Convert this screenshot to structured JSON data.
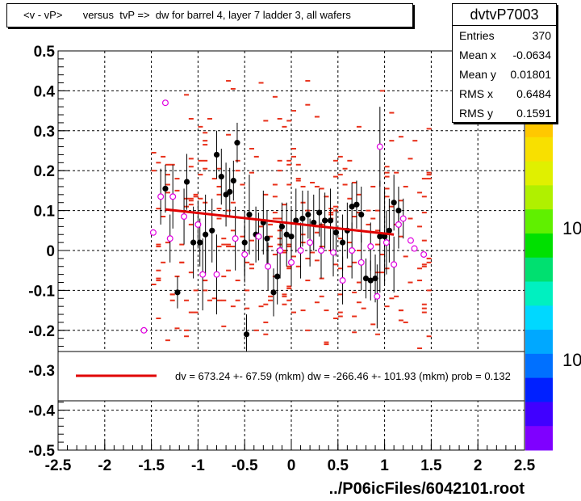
{
  "title": "<v - vP>       versus  tvP =>  dw for barrel 4, layer 7 ladder 3, all wafers",
  "stats": {
    "name": "dvtvP7003",
    "rows": [
      {
        "key": "Entries",
        "value": "370"
      },
      {
        "key": "Mean x",
        "value": "-0.0634"
      },
      {
        "key": "Mean y",
        "value": "0.01801"
      },
      {
        "key": "RMS x",
        "value": "0.6484"
      },
      {
        "key": "RMS y",
        "value": "0.1591"
      }
    ]
  },
  "footer": "../P06icFiles/6042101.root",
  "legend": {
    "fit_text": "dv =  673.24 +- 67.59 (mkm) dw = -266.46 +- 101.93 (mkm) prob = 0.132"
  },
  "colorbar": {
    "labels": [
      "10",
      "10"
    ]
  },
  "colors": {
    "hist": "#e8301a",
    "profile_black": "#000000",
    "profile_magenta": "#e000e0",
    "fit": "#e00000"
  },
  "chart_data": {
    "type": "scatter",
    "xlim": [
      -2.5,
      2.5
    ],
    "ylim": [
      -0.5,
      0.5
    ],
    "x_ticks": [
      "-2.5",
      "-2",
      "-1.5",
      "-1",
      "-0.5",
      "0",
      "0.5",
      "1",
      "1.5",
      "2",
      "2.5"
    ],
    "y_ticks": [
      "-0.5",
      "-0.4",
      "-0.3",
      "-0.2",
      "-0.1",
      "0",
      "0.1",
      "0.2",
      "0.3",
      "0.4",
      "0.5"
    ],
    "grid": true,
    "fit_line": {
      "x": [
        -1.35,
        1.1
      ],
      "y": [
        0.103,
        0.04
      ]
    },
    "profile_black": [
      {
        "x": -1.35,
        "y": 0.155,
        "e": 0.06
      },
      {
        "x": -1.22,
        "y": -0.105,
        "e": 0.04
      },
      {
        "x": -1.12,
        "y": 0.172,
        "e": 0.07
      },
      {
        "x": -1.05,
        "y": 0.02,
        "e": 0.09
      },
      {
        "x": -0.98,
        "y": 0.02,
        "e": 0.06
      },
      {
        "x": -0.92,
        "y": 0.04,
        "e": 0.1
      },
      {
        "x": -0.85,
        "y": 0.05,
        "e": 0.08
      },
      {
        "x": -0.8,
        "y": 0.24,
        "e": 0.06
      },
      {
        "x": -0.75,
        "y": 0.185,
        "e": 0.07
      },
      {
        "x": -0.7,
        "y": 0.14,
        "e": 0.08
      },
      {
        "x": -0.66,
        "y": 0.147,
        "e": 0.06
      },
      {
        "x": -0.62,
        "y": 0.175,
        "e": 0.05
      },
      {
        "x": -0.58,
        "y": 0.27,
        "e": 0.05
      },
      {
        "x": -0.5,
        "y": 0.02,
        "e": 0.08
      },
      {
        "x": -0.48,
        "y": -0.21,
        "e": 0.05
      },
      {
        "x": -0.45,
        "y": 0.09,
        "e": 0.1
      },
      {
        "x": -0.38,
        "y": 0.04,
        "e": 0.07
      },
      {
        "x": -0.3,
        "y": 0.07,
        "e": 0.08
      },
      {
        "x": -0.26,
        "y": 0.03,
        "e": 0.07
      },
      {
        "x": -0.19,
        "y": -0.105,
        "e": 0.06
      },
      {
        "x": -0.15,
        "y": -0.065,
        "e": 0.07
      },
      {
        "x": -0.1,
        "y": 0.06,
        "e": 0.06
      },
      {
        "x": -0.05,
        "y": 0.04,
        "e": 0.08
      },
      {
        "x": 0.0,
        "y": 0.035,
        "e": 0.07
      },
      {
        "x": 0.05,
        "y": 0.075,
        "e": 0.08
      },
      {
        "x": 0.12,
        "y": 0.08,
        "e": 0.07
      },
      {
        "x": 0.18,
        "y": 0.09,
        "e": 0.06
      },
      {
        "x": 0.24,
        "y": 0.07,
        "e": 0.07
      },
      {
        "x": 0.3,
        "y": 0.095,
        "e": 0.06
      },
      {
        "x": 0.36,
        "y": 0.075,
        "e": 0.07
      },
      {
        "x": 0.42,
        "y": 0.075,
        "e": 0.08
      },
      {
        "x": 0.48,
        "y": 0.045,
        "e": 0.06
      },
      {
        "x": 0.55,
        "y": 0.02,
        "e": 0.07
      },
      {
        "x": 0.6,
        "y": 0.05,
        "e": 0.07
      },
      {
        "x": 0.65,
        "y": 0.11,
        "e": 0.06
      },
      {
        "x": 0.7,
        "y": 0.115,
        "e": 0.06
      },
      {
        "x": 0.75,
        "y": 0.09,
        "e": 0.07
      },
      {
        "x": 0.8,
        "y": -0.07,
        "e": 0.05
      },
      {
        "x": 0.85,
        "y": -0.075,
        "e": 0.05
      },
      {
        "x": 0.9,
        "y": -0.07,
        "e": 0.06
      },
      {
        "x": 0.95,
        "y": 0.035,
        "e": 0.14
      },
      {
        "x": 1.0,
        "y": 0.035,
        "e": 0.12
      },
      {
        "x": 1.05,
        "y": 0.05,
        "e": 0.08
      },
      {
        "x": 1.1,
        "y": 0.12,
        "e": 0.07
      },
      {
        "x": 1.15,
        "y": 0.1,
        "e": 0.06
      }
    ],
    "profile_magenta": [
      {
        "x": -1.58,
        "y": -0.2,
        "e": 0.0
      },
      {
        "x": -1.48,
        "y": 0.045,
        "e": 0.0
      },
      {
        "x": -1.4,
        "y": 0.135,
        "e": 0.07
      },
      {
        "x": -1.35,
        "y": 0.37,
        "e": 0.0
      },
      {
        "x": -1.3,
        "y": 0.03,
        "e": 0.06
      },
      {
        "x": -1.27,
        "y": 0.135,
        "e": 0.08
      },
      {
        "x": -1.15,
        "y": 0.085,
        "e": 0.07
      },
      {
        "x": -1.0,
        "y": 0.065,
        "e": 0.06
      },
      {
        "x": -0.95,
        "y": -0.06,
        "e": 0.09
      },
      {
        "x": -0.8,
        "y": -0.06,
        "e": 0.1
      },
      {
        "x": -0.6,
        "y": 0.03,
        "e": 0.08
      },
      {
        "x": -0.5,
        "y": -0.01,
        "e": 0.07
      },
      {
        "x": -0.35,
        "y": 0.035,
        "e": 0.06
      },
      {
        "x": -0.25,
        "y": -0.04,
        "e": 0.06
      },
      {
        "x": -0.12,
        "y": 0.0,
        "e": 0.07
      },
      {
        "x": 0.0,
        "y": -0.03,
        "e": 0.06
      },
      {
        "x": 0.1,
        "y": 0.0,
        "e": 0.07
      },
      {
        "x": 0.2,
        "y": 0.02,
        "e": 0.06
      },
      {
        "x": 0.32,
        "y": 0.0,
        "e": 0.07
      },
      {
        "x": 0.45,
        "y": -0.005,
        "e": 0.06
      },
      {
        "x": 0.55,
        "y": -0.075,
        "e": 0.06
      },
      {
        "x": 0.65,
        "y": 0.0,
        "e": 0.07
      },
      {
        "x": 0.75,
        "y": -0.03,
        "e": 0.07
      },
      {
        "x": 0.85,
        "y": 0.01,
        "e": 0.06
      },
      {
        "x": 0.92,
        "y": -0.115,
        "e": 0.08
      },
      {
        "x": 0.95,
        "y": 0.26,
        "e": 0.1
      },
      {
        "x": 1.02,
        "y": 0.02,
        "e": 0.08
      },
      {
        "x": 1.1,
        "y": -0.035,
        "e": 0.07
      },
      {
        "x": 1.15,
        "y": 0.065,
        "e": 0.06
      },
      {
        "x": 1.2,
        "y": 0.08,
        "e": 0.05
      },
      {
        "x": 1.28,
        "y": 0.025,
        "e": 0.0
      },
      {
        "x": 1.32,
        "y": 0.005,
        "e": 0.0
      },
      {
        "x": 1.42,
        "y": -0.01,
        "e": 0.0
      }
    ]
  }
}
